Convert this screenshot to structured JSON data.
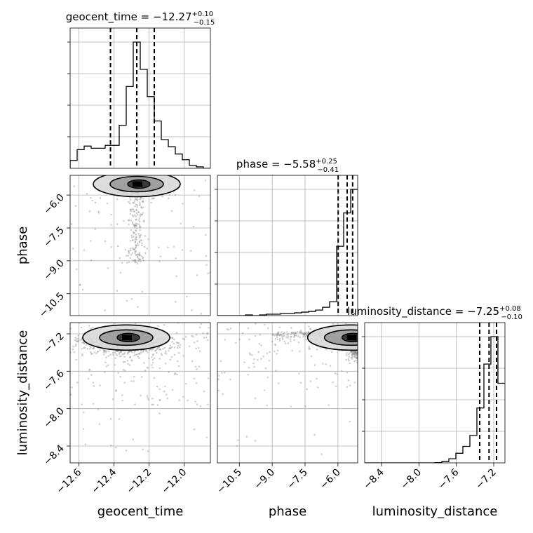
{
  "chart_data": {
    "type": "corner",
    "parameters": [
      "geocent_time",
      "phase",
      "luminosity_distance"
    ],
    "grid": true,
    "diagonal": [
      {
        "parameter": "geocent_time",
        "title": {
          "prefix": "geocent_time = ",
          "median": "−12.27",
          "plus": "+0.10",
          "minus": "−0.15"
        },
        "quantiles": [
          -12.42,
          -12.27,
          -12.17
        ],
        "xlim": [
          -12.65,
          -11.85
        ],
        "hist": {
          "edges": [
            -12.65,
            -12.61,
            -12.57,
            -12.53,
            -12.49,
            -12.45,
            -12.41,
            -12.37,
            -12.33,
            -12.29,
            -12.25,
            -12.21,
            -12.17,
            -12.13,
            -12.09,
            -12.05,
            -12.01,
            -11.97,
            -11.93,
            -11.89,
            -11.85
          ],
          "counts": [
            0.055,
            0.13,
            0.155,
            0.14,
            0.14,
            0.16,
            0.16,
            0.3,
            0.57,
            0.88,
            0.69,
            0.5,
            0.33,
            0.2,
            0.15,
            0.1,
            0.06,
            0.02,
            0.01,
            0.0
          ]
        }
      },
      {
        "parameter": "phase",
        "title": {
          "prefix": "phase = ",
          "median": "−5.58",
          "plus": "+0.25",
          "minus": "−0.41"
        },
        "quantiles": [
          -5.99,
          -5.58,
          -5.33
        ],
        "xlim": [
          -11.5,
          -5.1
        ],
        "hist": {
          "edges": [
            -11.5,
            -11.18,
            -10.86,
            -10.54,
            -10.22,
            -9.9,
            -9.58,
            -9.26,
            -8.94,
            -8.62,
            -8.3,
            -7.98,
            -7.66,
            -7.34,
            -7.02,
            -6.7,
            -6.38,
            -6.06,
            -5.74,
            -5.42,
            -5.1
          ],
          "counts": [
            0.0,
            0.0,
            0.0,
            0.0,
            0.005,
            0.0,
            0.005,
            0.01,
            0.01,
            0.015,
            0.015,
            0.02,
            0.025,
            0.03,
            0.04,
            0.06,
            0.1,
            0.5,
            0.74,
            0.91
          ]
        }
      },
      {
        "parameter": "luminosity_distance",
        "title": {
          "prefix": "luminosity_distance = ",
          "median": "−7.25",
          "plus": "+0.08",
          "minus": "−0.10"
        },
        "quantiles": [
          -7.35,
          -7.25,
          -7.17
        ],
        "xlim": [
          -8.58,
          -7.08
        ],
        "hist": {
          "edges": [
            -8.58,
            -8.505,
            -8.43,
            -8.355,
            -8.28,
            -8.205,
            -8.13,
            -8.055,
            -7.98,
            -7.905,
            -7.83,
            -7.755,
            -7.68,
            -7.605,
            -7.53,
            -7.455,
            -7.38,
            -7.305,
            -7.23,
            -7.155,
            -7.08
          ],
          "counts": [
            0.0,
            0.0,
            0.0,
            0.0,
            0.0,
            0.0,
            0.0,
            0.0,
            0.0,
            0.0,
            0.002,
            0.01,
            0.03,
            0.07,
            0.12,
            0.2,
            0.4,
            0.72,
            0.92,
            0.58
          ]
        }
      }
    ],
    "panels_2d": [
      {
        "x": "geocent_time",
        "y": "phase",
        "xlim": [
          -12.65,
          -11.85
        ],
        "ylim": [
          -11.5,
          -5.1
        ],
        "peak": [
          -12.27,
          -5.5
        ]
      },
      {
        "x": "geocent_time",
        "y": "luminosity_distance",
        "xlim": [
          -12.65,
          -11.85
        ],
        "ylim": [
          -8.58,
          -7.08
        ],
        "peak": [
          -12.33,
          -7.24
        ]
      },
      {
        "x": "phase",
        "y": "luminosity_distance",
        "xlim": [
          -11.5,
          -5.1
        ],
        "ylim": [
          -8.58,
          -7.08
        ],
        "peak": [
          -5.4,
          -7.24
        ]
      }
    ],
    "x_ticks": {
      "geocent_time": {
        "values": [
          -12.6,
          -12.4,
          -12.2,
          -12.0
        ],
        "labels": [
          "−12.6",
          "−12.4",
          "−12.2",
          "−12.0"
        ]
      },
      "phase": {
        "values": [
          -10.5,
          -9.0,
          -7.5,
          -6.0
        ],
        "labels": [
          "−10.5",
          "−9.0",
          "−7.5",
          "−6.0"
        ]
      },
      "luminosity_distance": {
        "values": [
          -8.4,
          -8.0,
          -7.6,
          -7.2
        ],
        "labels": [
          "−8.4",
          "−8.0",
          "−7.6",
          "−7.2"
        ]
      }
    },
    "y_ticks": {
      "phase": {
        "values": [
          -6.0,
          -7.5,
          -9.0,
          -10.5
        ],
        "labels": [
          "−6.0",
          "−7.5",
          "−9.0",
          "−10.5"
        ]
      },
      "luminosity_distance": {
        "values": [
          -7.2,
          -7.6,
          -8.0,
          -8.4
        ],
        "labels": [
          "−7.2",
          "−7.6",
          "−8.0",
          "−8.4"
        ]
      }
    },
    "xlabels": [
      "geocent_time",
      "phase",
      "luminosity_distance"
    ],
    "ylabels": [
      "phase",
      "luminosity_distance"
    ]
  }
}
